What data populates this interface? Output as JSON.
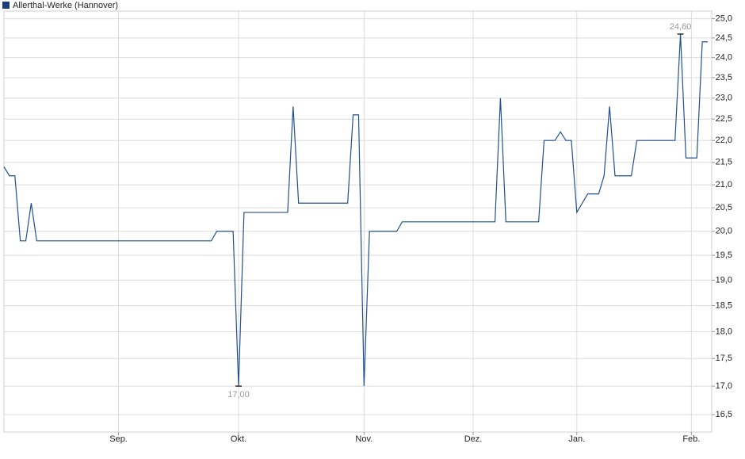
{
  "chart_data": {
    "type": "line",
    "categories": [
      null,
      null,
      null,
      null,
      null,
      null,
      null,
      null,
      null,
      null,
      null,
      null,
      null,
      null,
      null,
      null,
      null,
      null,
      null,
      null,
      null,
      "Sep.",
      null,
      null,
      null,
      null,
      null,
      null,
      null,
      null,
      null,
      null,
      null,
      null,
      null,
      null,
      null,
      null,
      null,
      null,
      null,
      null,
      null,
      "Okt.",
      null,
      null,
      null,
      null,
      null,
      null,
      null,
      null,
      null,
      null,
      null,
      null,
      null,
      null,
      null,
      null,
      null,
      null,
      null,
      null,
      null,
      null,
      "Nov.",
      null,
      null,
      null,
      null,
      null,
      null,
      null,
      null,
      null,
      null,
      null,
      null,
      null,
      null,
      null,
      null,
      null,
      null,
      null,
      "Dez.",
      null,
      null,
      null,
      null,
      null,
      null,
      null,
      null,
      null,
      null,
      null,
      null,
      null,
      null,
      null,
      null,
      null,
      null,
      "Jan.",
      null,
      null,
      null,
      null,
      null,
      null,
      null,
      null,
      null,
      null,
      null,
      null,
      null,
      null,
      null,
      null,
      null,
      null,
      null,
      null,
      "Feb.",
      null,
      null,
      null
    ],
    "series": [
      {
        "name": "Allerthal-Werke (Hannover)",
        "color": "#21508f",
        "values": [
          21.4,
          21.2,
          21.2,
          19.8,
          19.8,
          20.6,
          19.8,
          19.8,
          19.8,
          19.8,
          19.8,
          19.8,
          19.8,
          19.8,
          19.8,
          19.8,
          19.8,
          19.8,
          19.8,
          19.8,
          19.8,
          19.8,
          19.8,
          19.8,
          19.8,
          19.8,
          19.8,
          19.8,
          19.8,
          19.8,
          19.8,
          19.8,
          19.8,
          19.8,
          19.8,
          19.8,
          19.8,
          19.8,
          19.8,
          20.0,
          20.0,
          20.0,
          20.0,
          17.0,
          20.4,
          20.4,
          20.4,
          20.4,
          20.4,
          20.4,
          20.4,
          20.4,
          20.4,
          22.8,
          20.6,
          20.6,
          20.6,
          20.6,
          20.6,
          20.6,
          20.6,
          20.6,
          20.6,
          20.6,
          22.6,
          22.6,
          17.0,
          20.0,
          20.0,
          20.0,
          20.0,
          20.0,
          20.0,
          20.2,
          20.2,
          20.2,
          20.2,
          20.2,
          20.2,
          20.2,
          20.2,
          20.2,
          20.2,
          20.2,
          20.2,
          20.2,
          20.2,
          20.2,
          20.2,
          20.2,
          20.2,
          23.0,
          20.2,
          20.2,
          20.2,
          20.2,
          20.2,
          20.2,
          20.2,
          22.0,
          22.0,
          22.0,
          22.2,
          22.0,
          22.0,
          20.4,
          20.6,
          20.8,
          20.8,
          20.8,
          21.2,
          22.8,
          21.2,
          21.2,
          21.2,
          21.2,
          22.0,
          22.0,
          22.0,
          22.0,
          22.0,
          22.0,
          22.0,
          22.0,
          24.6,
          21.6,
          21.6,
          21.6,
          24.4,
          24.4
        ],
        "value_labels": [
          null,
          null,
          null,
          null,
          null,
          null,
          null,
          null,
          null,
          null,
          null,
          null,
          null,
          null,
          null,
          null,
          null,
          null,
          null,
          null,
          null,
          null,
          null,
          null,
          null,
          null,
          null,
          null,
          null,
          null,
          null,
          null,
          null,
          null,
          null,
          null,
          null,
          null,
          null,
          null,
          null,
          null,
          null,
          "17,00",
          null,
          null,
          null,
          null,
          null,
          null,
          null,
          null,
          null,
          null,
          null,
          null,
          null,
          null,
          null,
          null,
          null,
          null,
          null,
          null,
          null,
          null,
          null,
          null,
          null,
          null,
          null,
          null,
          null,
          null,
          null,
          null,
          null,
          null,
          null,
          null,
          null,
          null,
          null,
          null,
          null,
          null,
          null,
          null,
          null,
          null,
          null,
          null,
          null,
          null,
          null,
          null,
          null,
          null,
          null,
          null,
          null,
          null,
          null,
          null,
          null,
          null,
          null,
          null,
          null,
          null,
          null,
          null,
          null,
          null,
          null,
          null,
          null,
          null,
          null,
          null,
          null,
          null,
          null,
          null,
          "24,60",
          null,
          null,
          null,
          null,
          null
        ]
      }
    ],
    "ylim": [
      16.2,
      25.2
    ],
    "log_scale": true,
    "grid": true,
    "legend": "top-left",
    "yticks": [
      {
        "value": 16.5,
        "label": "16,5"
      },
      {
        "value": 17,
        "label": "17,0"
      },
      {
        "value": 17.5,
        "label": "17,5"
      },
      {
        "value": 18,
        "label": "18,0"
      },
      {
        "value": 18.5,
        "label": "18,5"
      },
      {
        "value": 19,
        "label": "19,0"
      },
      {
        "value": 19.5,
        "label": "19,5"
      },
      {
        "value": 20,
        "label": "20,0"
      },
      {
        "value": 20.5,
        "label": "20,5"
      },
      {
        "value": 21,
        "label": "21,0"
      },
      {
        "value": 21.5,
        "label": "21,5"
      },
      {
        "value": 22,
        "label": "22,0"
      },
      {
        "value": 22.5,
        "label": "22,5"
      },
      {
        "value": 23,
        "label": "23,0"
      },
      {
        "value": 23.5,
        "label": "23,5"
      },
      {
        "value": 24,
        "label": "24,0"
      },
      {
        "value": 24.5,
        "label": "24,5"
      },
      {
        "value": 25,
        "label": "25,0"
      }
    ]
  }
}
